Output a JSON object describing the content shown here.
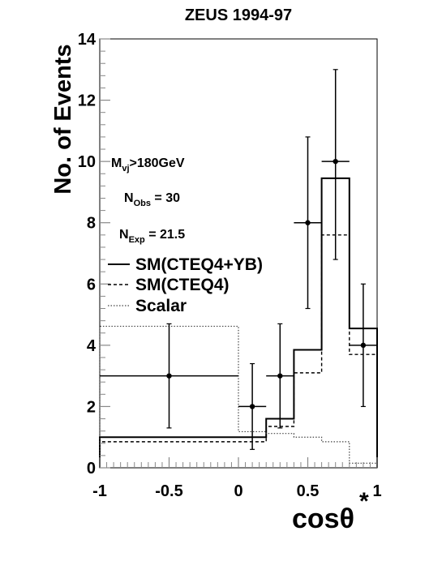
{
  "chart_data": {
    "type": "histogram",
    "title": "ZEUS 1994-97",
    "xlabel_base": "cosθ",
    "xlabel_sup": "*",
    "ylabel": "No. of Events",
    "xlim": [
      -1,
      1
    ],
    "ylim": [
      0,
      14
    ],
    "x_ticks": [
      {
        "value": -1,
        "label": "-1"
      },
      {
        "value": -0.5,
        "label": "-0.5"
      },
      {
        "value": 0,
        "label": "0"
      },
      {
        "value": 0.5,
        "label": "0.5"
      },
      {
        "value": 1,
        "label": "1"
      }
    ],
    "y_ticks": [
      {
        "value": 0,
        "label": "0"
      },
      {
        "value": 2,
        "label": "2"
      },
      {
        "value": 4,
        "label": "4"
      },
      {
        "value": 6,
        "label": "6"
      },
      {
        "value": 8,
        "label": "8"
      },
      {
        "value": 10,
        "label": "10"
      },
      {
        "value": 12,
        "label": "12"
      },
      {
        "value": 14,
        "label": "14"
      }
    ],
    "bin_edges": [
      -1,
      0,
      0.2,
      0.4,
      0.6,
      0.8,
      1.0
    ],
    "series": [
      {
        "name": "SM(CTEQ4+YB)",
        "style": "solid",
        "values": [
          1.0,
          1.0,
          1.6,
          3.85,
          9.45,
          4.55
        ]
      },
      {
        "name": "SM(CTEQ4)",
        "style": "dashed",
        "values": [
          0.85,
          0.85,
          1.35,
          3.1,
          7.6,
          3.7
        ]
      },
      {
        "name": "Scalar",
        "style": "dotted",
        "values": [
          4.62,
          1.18,
          1.12,
          1.0,
          0.85,
          0.15
        ]
      }
    ],
    "data_points": [
      {
        "x": -0.5,
        "y": 3,
        "xerr": 0.5,
        "yerr_low": 1.7,
        "yerr_high": 1.7
      },
      {
        "x": 0.1,
        "y": 2,
        "xerr": 0.1,
        "yerr_low": 1.4,
        "yerr_high": 1.4
      },
      {
        "x": 0.3,
        "y": 3,
        "xerr": 0.1,
        "yerr_low": 1.7,
        "yerr_high": 1.7
      },
      {
        "x": 0.5,
        "y": 8,
        "xerr": 0.1,
        "yerr_low": 2.8,
        "yerr_high": 2.8
      },
      {
        "x": 0.7,
        "y": 10,
        "xerr": 0.1,
        "yerr_low": 3.2,
        "yerr_high": 3.0
      },
      {
        "x": 0.9,
        "y": 4,
        "xerr": 0.1,
        "yerr_low": 2.0,
        "yerr_high": 2.0
      }
    ],
    "annotations": [
      {
        "base": "M",
        "sub": "vj",
        "rest": ">180GeV"
      },
      {
        "base": "N",
        "sub": "Obs",
        "rest": " = 30"
      },
      {
        "base": "N",
        "sub": "Exp",
        "rest": " = 21.5"
      }
    ],
    "legend_position": "left-middle",
    "grid": false
  }
}
